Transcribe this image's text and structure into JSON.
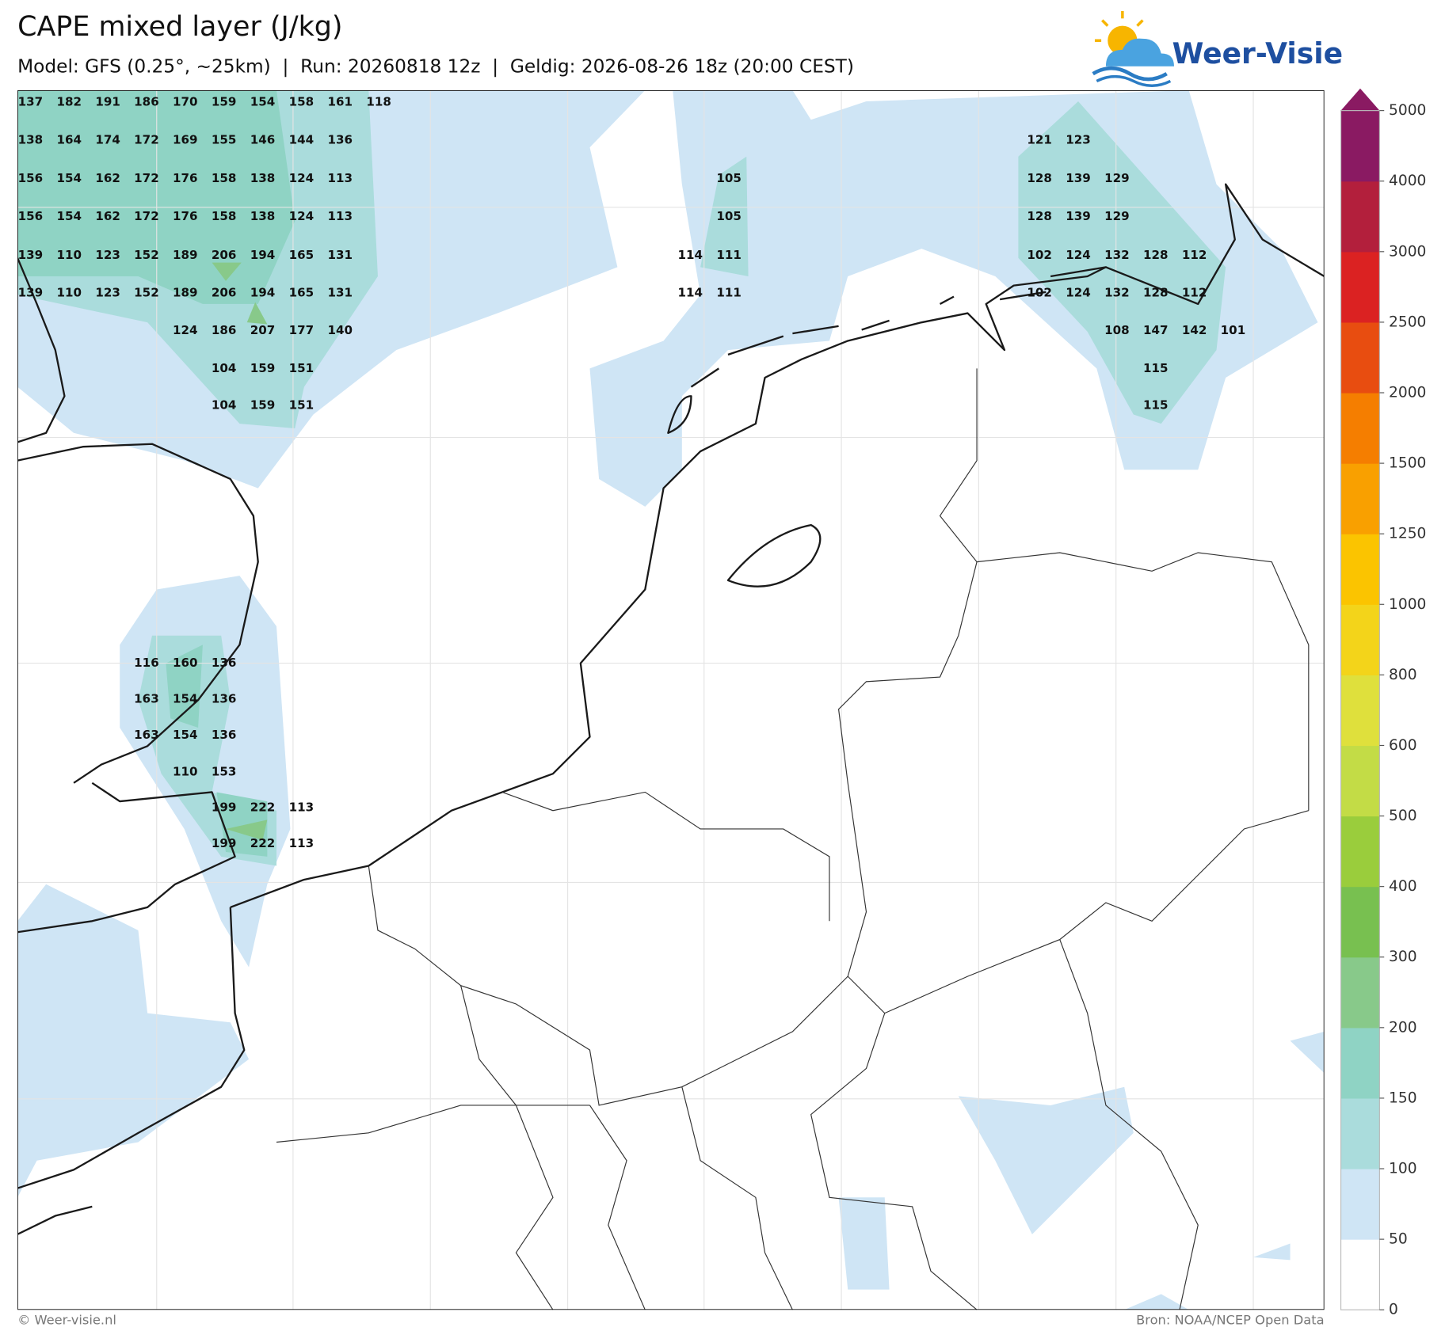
{
  "header": {
    "title": "CAPE mixed layer (J/kg)",
    "subtitle": "Model: GFS (0.25°, ~25km)  |  Run: 20260818 12z  |  Geldig: 2026-08-26 18z (20:00 CEST)"
  },
  "logo": "Weer-Visie",
  "colorbar": {
    "levels": [
      0,
      50,
      100,
      150,
      200,
      300,
      400,
      500,
      600,
      800,
      1000,
      1250,
      1500,
      2000,
      2500,
      3000,
      4000,
      5000
    ],
    "colors": [
      "#ffffff",
      "#cfe5f5",
      "#aadcdc",
      "#8fd3c4",
      "#88c98a",
      "#78c050",
      "#9acd3c",
      "#c3dc46",
      "#dfe03c",
      "#f3d41a",
      "#fbc400",
      "#f9a000",
      "#f57e00",
      "#e84d10",
      "#db2222",
      "#b31f3c",
      "#8a1a62"
    ]
  },
  "cape_labels": [
    [
      [
        137,
        182,
        191,
        186,
        170,
        159,
        154,
        158,
        161,
        118
      ],
      [
        138,
        164,
        174,
        172,
        169,
        155,
        146,
        144,
        136
      ],
      [
        156,
        154,
        162,
        172,
        176,
        158,
        138,
        124,
        113
      ],
      [
        156,
        154,
        162,
        172,
        176,
        158,
        138,
        124,
        113
      ],
      [
        139,
        110,
        123,
        152,
        189,
        206,
        194,
        165,
        131
      ],
      [
        139,
        110,
        123,
        152,
        189,
        206,
        194,
        165,
        131
      ],
      [
        124,
        186,
        207,
        177,
        140
      ],
      [
        104,
        159,
        151
      ],
      [
        104,
        159,
        151
      ]
    ],
    [
      [
        105
      ],
      [
        105
      ],
      [
        114,
        111
      ],
      [
        114,
        111
      ]
    ],
    [
      [
        121,
        123
      ],
      [
        128,
        139,
        129
      ],
      [
        128,
        139,
        129
      ],
      [
        102,
        124,
        132,
        128,
        112
      ],
      [
        102,
        124,
        132,
        128,
        112
      ],
      [
        108,
        147,
        142,
        101
      ],
      [
        115
      ],
      [
        115
      ]
    ],
    [
      [
        116,
        160,
        136
      ],
      [
        163,
        154,
        136
      ],
      [
        163,
        154,
        136
      ],
      [
        110,
        153
      ],
      [
        199,
        222,
        113
      ],
      [
        199,
        222,
        113
      ]
    ]
  ],
  "footer": {
    "left": "© Weer-visie.nl",
    "right": "Bron: NOAA/NCEP Open Data"
  }
}
